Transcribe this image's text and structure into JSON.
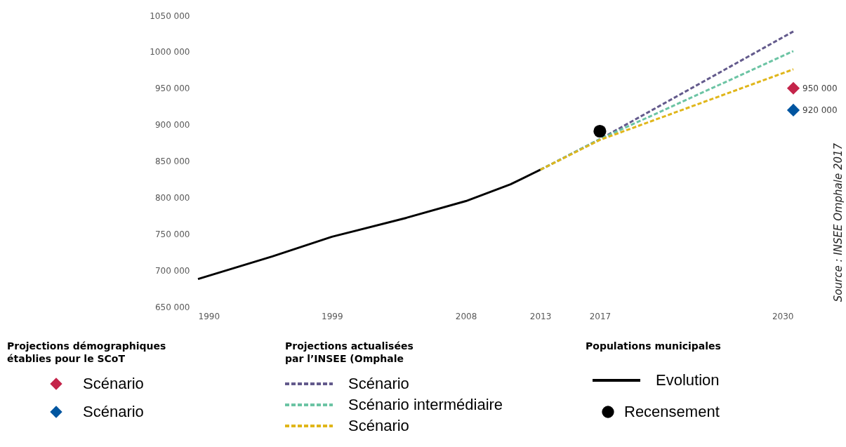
{
  "chart_data": {
    "type": "line",
    "legend_title": [
      "Projections démographiques\nétablies pour le SCoT",
      "Projections actualisées\npar l’INSEE (Omphale",
      "Populations municipales"
    ],
    "annotations": [
      "Source : INSEE Omphale 2017"
    ],
    "xlim": [
      1990,
      2030
    ],
    "xticks": [
      1990,
      1999,
      2008,
      2013,
      2017,
      2030
    ],
    "ylim": [
      650000,
      1050000
    ],
    "yticks": [
      {
        "value": 650000,
        "label": "650 000"
      },
      {
        "value": 700000,
        "label": "700 000"
      },
      {
        "value": 750000,
        "label": "750 000"
      },
      {
        "value": 800000,
        "label": "800 000"
      },
      {
        "value": 850000,
        "label": "850 000"
      },
      {
        "value": 900000,
        "label": "900 000"
      },
      {
        "value": 950000,
        "label": "950 000"
      },
      {
        "value": 1000000,
        "label": "1000 000"
      },
      {
        "value": 1050000,
        "label": "1050 000"
      }
    ],
    "grid": false,
    "legend": "bottom",
    "series": [
      {
        "name": "Scénario",
        "type": "scatter",
        "marker": "diamond",
        "color": "#c4244a",
        "x": [
          2030
        ],
        "values": [
          950000
        ],
        "value_labels": [
          "950 000"
        ]
      },
      {
        "name": "Scénario",
        "type": "scatter",
        "marker": "diamond",
        "color": "#0055a0",
        "x": [
          2030
        ],
        "values": [
          920000
        ],
        "value_labels": [
          "920 000"
        ]
      },
      {
        "name": "Scénario",
        "line_style": "dashed",
        "color": "#635a8c",
        "x": [
          2013,
          2017,
          2030
        ],
        "values": [
          838000,
          880000,
          1028000
        ]
      },
      {
        "name": "Scénario intermédiaire",
        "line_style": "dashed",
        "color": "#6cc4a4",
        "x": [
          2013,
          2017,
          2030
        ],
        "values": [
          838000,
          880000,
          1001000
        ]
      },
      {
        "name": "Scénario",
        "line_style": "dashed",
        "color": "#e0b61a",
        "x": [
          2013,
          2017,
          2030
        ],
        "values": [
          838000,
          879000,
          976000
        ]
      },
      {
        "name": "Evolution",
        "line_style": "solid",
        "color": "#000000",
        "x": [
          1990,
          1995,
          1999,
          2004,
          2008,
          2011,
          2013
        ],
        "values": [
          688000,
          719000,
          746000,
          772000,
          795000,
          818000,
          838000
        ]
      },
      {
        "name": "Recensement",
        "type": "scatter",
        "marker": "circle",
        "color": "#000000",
        "x": [
          2017
        ],
        "values": [
          891000
        ]
      }
    ]
  }
}
